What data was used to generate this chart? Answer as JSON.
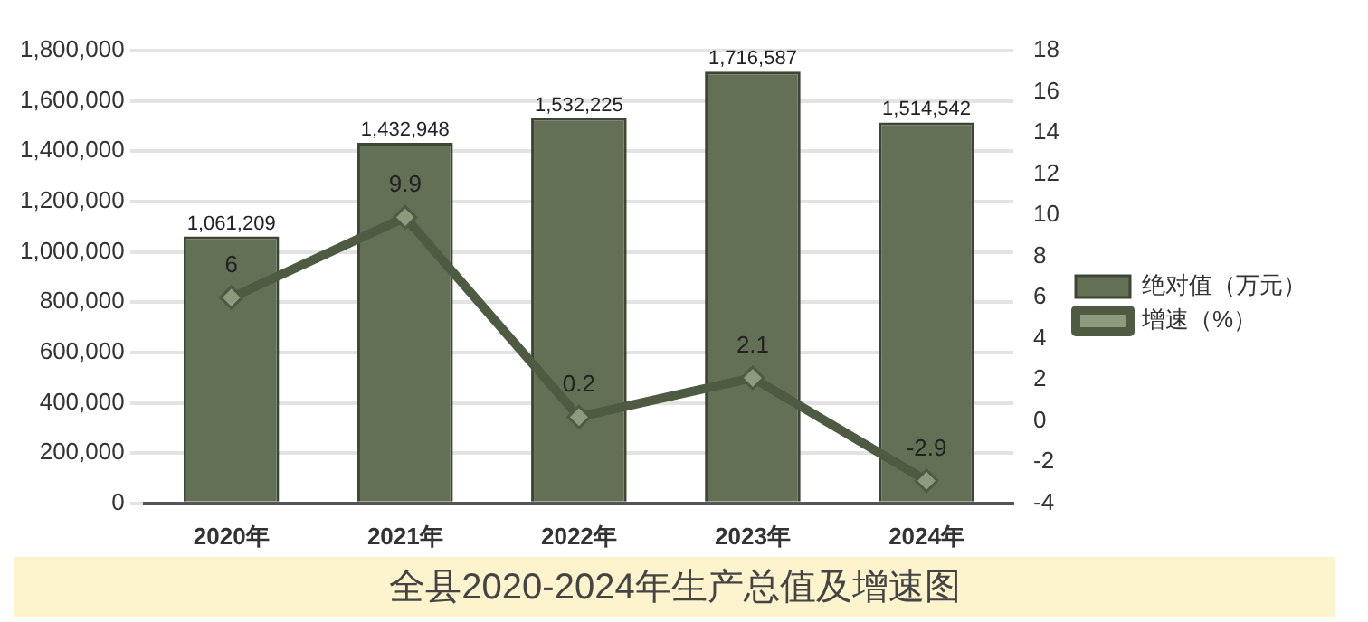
{
  "chart_data": {
    "type": "bar",
    "title": "全县2020-2024年生产总值及增速图",
    "categories": [
      "2020年",
      "2021年",
      "2022年",
      "2023年",
      "2024年"
    ],
    "series": [
      {
        "name": "绝对值（万元）",
        "color": "#647056",
        "values": [
          1061209,
          1432948,
          1532225,
          1716587,
          1514542
        ],
        "value_labels": [
          "1,061,209",
          "1,432,948",
          "1,532,225",
          "1,716,587",
          "1,514,542"
        ]
      },
      {
        "name": "增速（%）",
        "type": "line",
        "axis": "y2",
        "color": "#4f5a42",
        "values": [
          6,
          9.9,
          0.2,
          2.1,
          -2.9
        ]
      }
    ],
    "ylim": [
      0,
      1800000
    ],
    "yticks": [
      0,
      {
        "value": 200000,
        "label": "200,000"
      },
      {
        "value": 400000,
        "label": "400,000"
      },
      {
        "value": 600000,
        "label": "600,000"
      },
      {
        "value": 800000,
        "label": "800,000"
      },
      {
        "value": 1000000,
        "label": "1,000,000"
      },
      {
        "value": 1200000,
        "label": "1,200,000"
      },
      {
        "value": 1400000,
        "label": "1,400,000"
      },
      {
        "value": 1600000,
        "label": "1,600,000"
      },
      {
        "value": 1800000,
        "label": "1,800,000"
      }
    ],
    "y2lim": [
      -4,
      18
    ],
    "y2ticks": [
      -4,
      -2,
      0,
      2,
      4,
      6,
      8,
      10,
      12,
      14,
      16,
      18
    ],
    "grid": "y",
    "legend": "right",
    "marker": "diamond",
    "line_style": "solid",
    "data_labels": true
  }
}
